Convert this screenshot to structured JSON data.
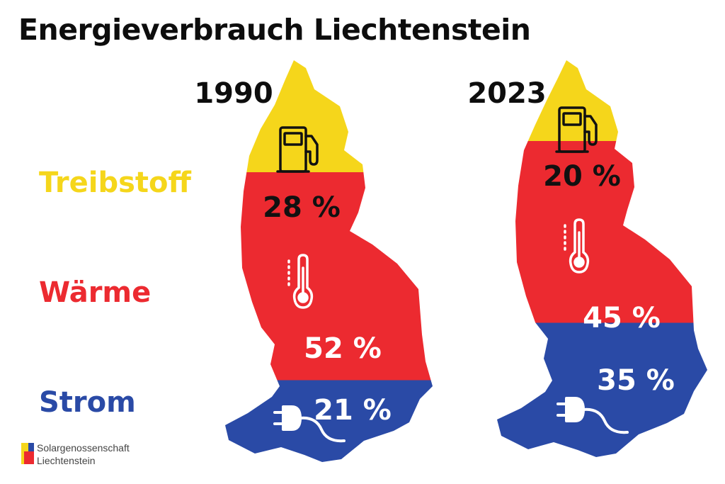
{
  "title": "Energieverbrauch Liechtenstein",
  "colors": {
    "fuel": "#f5d61b",
    "heat": "#ec2a30",
    "power": "#2a4aa6"
  },
  "icons": {
    "fuel": "fuel-pump-icon",
    "heat": "thermometer-icon",
    "power": "plug-icon"
  },
  "logo": {
    "line1": "Solargenossenschaft",
    "line2": "Liechtenstein"
  },
  "chart_data": {
    "type": "bar",
    "layout": "stacked",
    "categories": [
      "1990",
      "2023"
    ],
    "series": [
      {
        "name": "Treibstoff",
        "values": [
          28,
          20
        ],
        "labels": [
          "28 %",
          "20 %"
        ]
      },
      {
        "name": "Wärme",
        "values": [
          52,
          45
        ],
        "labels": [
          "52 %",
          "45 %"
        ]
      },
      {
        "name": "Strom",
        "values": [
          21,
          35
        ],
        "labels": [
          "21 %",
          "35 %"
        ]
      }
    ],
    "title": "Energieverbrauch Liechtenstein",
    "unit": "%"
  }
}
